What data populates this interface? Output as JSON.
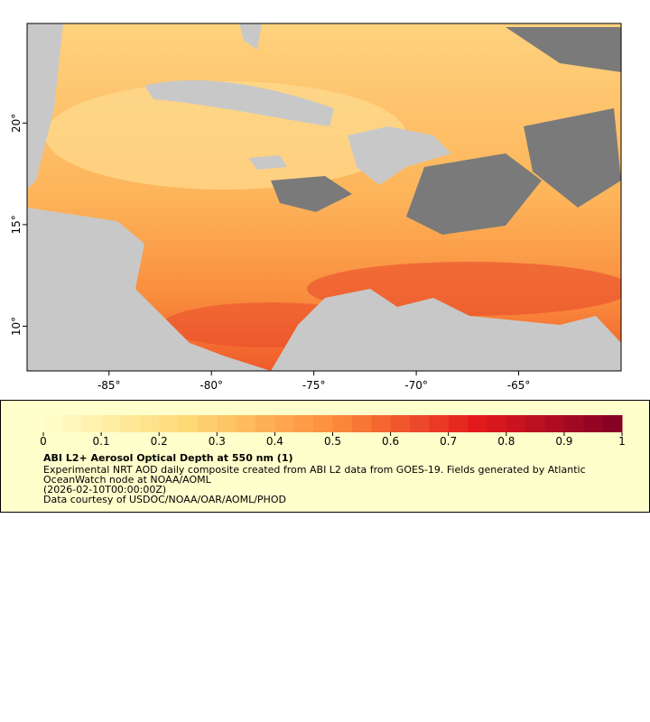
{
  "map": {
    "xlim": [
      -89,
      -60
    ],
    "ylim": [
      7.8,
      24.9
    ],
    "xticks": [
      {
        "value": -85,
        "label": "-85°"
      },
      {
        "value": -80,
        "label": "-80°"
      },
      {
        "value": -75,
        "label": "-75°"
      },
      {
        "value": -70,
        "label": "-70°"
      },
      {
        "value": -65,
        "label": "-65°"
      }
    ],
    "yticks": [
      {
        "value": 10,
        "label": "10°"
      },
      {
        "value": 15,
        "label": "15°"
      },
      {
        "value": 20,
        "label": "20°"
      }
    ]
  },
  "colorbar": {
    "lim": [
      0,
      1
    ],
    "ticks": [
      0,
      0.1,
      0.2,
      0.3,
      0.4,
      0.5,
      0.6,
      0.7,
      0.8,
      0.9,
      1
    ]
  },
  "legend": {
    "title": "ABI L2+ Aerosol Optical Depth at 550 nm (1)",
    "lines": [
      "Experimental NRT AOD daily composite created from ABI L2 data from GOES-19. Fields generated by Atlantic",
      "OceanWatch node at NOAA/AOML",
      "(2026-02-10T00:00:00Z)",
      "Data courtesy of USDOC/NOAA/OAR/AOML/PHOD"
    ]
  }
}
